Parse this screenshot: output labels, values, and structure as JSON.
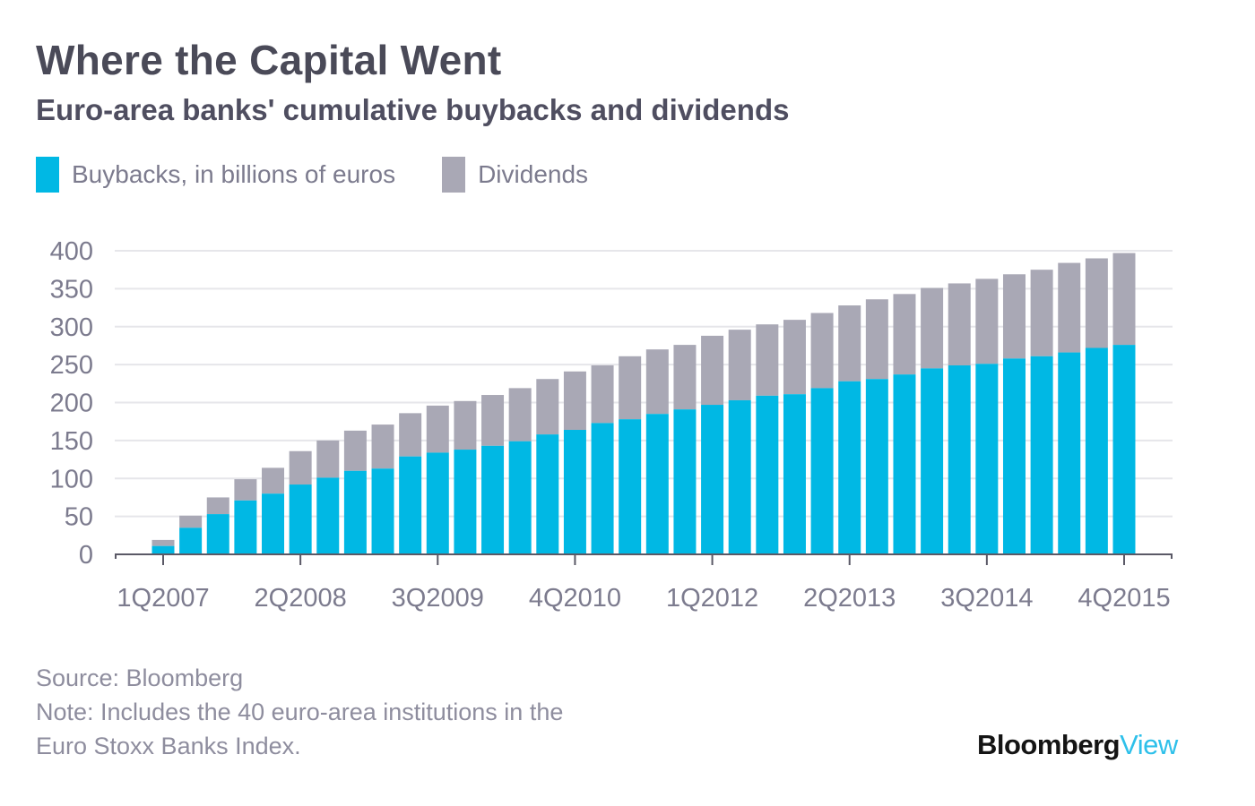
{
  "header": {
    "title": "Where the Capital Went",
    "subtitle": "Euro-area banks' cumulative buybacks and dividends"
  },
  "legend": [
    {
      "label": "Buybacks, in billions of euros",
      "color": "#00b8e4"
    },
    {
      "label": "Dividends",
      "color": "#a9a8b5"
    }
  ],
  "footer": {
    "source": "Source: Bloomberg",
    "note_line1": "Note: Includes the 40 euro-area institutions in the",
    "note_line2": "Euro Stoxx Banks Index."
  },
  "brand": {
    "part1": "Bloomberg",
    "part2": "View"
  },
  "chart_data": {
    "type": "bar",
    "stacked": true,
    "title": "Where the Capital Went",
    "subtitle": "Euro-area banks' cumulative buybacks and dividends",
    "xlabel": "",
    "ylabel": "",
    "ylim": [
      0,
      400
    ],
    "yticks": [
      0,
      50,
      100,
      150,
      200,
      250,
      300,
      350,
      400
    ],
    "grid": true,
    "legend_position": "top-left",
    "categories": [
      "1Q2007",
      "2Q2007",
      "3Q2007",
      "4Q2007",
      "1Q2008",
      "2Q2008",
      "3Q2008",
      "4Q2008",
      "1Q2009",
      "2Q2009",
      "3Q2009",
      "4Q2009",
      "1Q2010",
      "2Q2010",
      "3Q2010",
      "4Q2010",
      "1Q2011",
      "2Q2011",
      "3Q2011",
      "4Q2011",
      "1Q2012",
      "2Q2012",
      "3Q2012",
      "4Q2012",
      "1Q2013",
      "2Q2013",
      "3Q2013",
      "4Q2013",
      "1Q2014",
      "2Q2014",
      "3Q2014",
      "4Q2014",
      "1Q2015",
      "2Q2015",
      "3Q2015",
      "4Q2015"
    ],
    "xtick_labels": [
      "1Q2007",
      "2Q2008",
      "3Q2009",
      "4Q2010",
      "1Q2012",
      "2Q2013",
      "3Q2014",
      "4Q2015"
    ],
    "series": [
      {
        "name": "Buybacks, in billions of euros",
        "color": "#00b8e4",
        "values": [
          11,
          35,
          53,
          71,
          80,
          92,
          101,
          110,
          113,
          129,
          134,
          138,
          143,
          149,
          158,
          164,
          173,
          178,
          185,
          191,
          197,
          203,
          209,
          211,
          219,
          228,
          231,
          237,
          245,
          249,
          251,
          258,
          261,
          266,
          272,
          276
        ]
      },
      {
        "name": "Dividends",
        "color": "#a9a8b5",
        "values": [
          8,
          16,
          22,
          28,
          34,
          44,
          49,
          53,
          58,
          57,
          62,
          64,
          67,
          70,
          73,
          77,
          76,
          83,
          85,
          85,
          91,
          93,
          94,
          98,
          99,
          100,
          105,
          106,
          106,
          108,
          112,
          111,
          114,
          118,
          118,
          121
        ]
      }
    ]
  }
}
